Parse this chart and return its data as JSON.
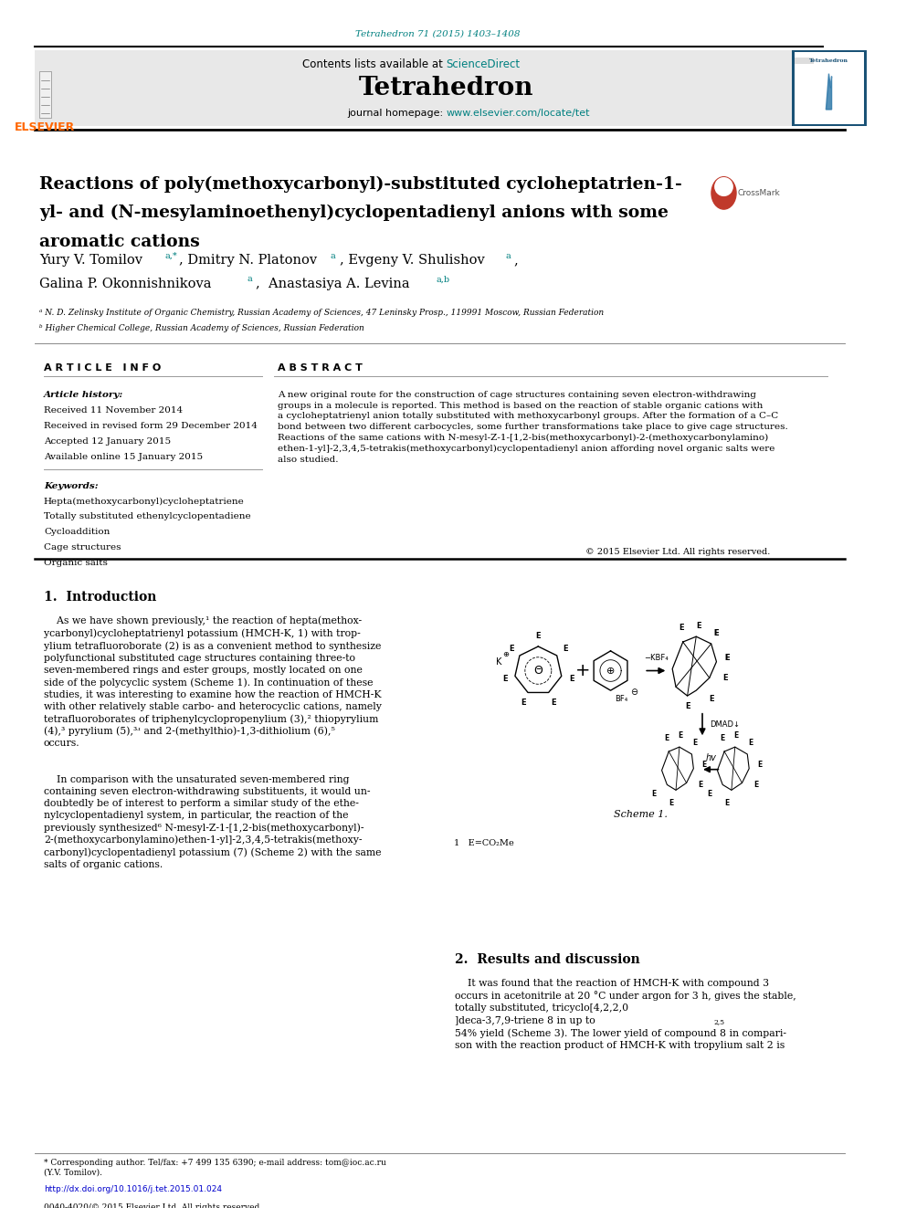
{
  "page_width": 9.92,
  "page_height": 13.23,
  "bg_color": "#ffffff",
  "journal_ref": "Tetrahedron 71 (2015) 1403–1408",
  "journal_ref_color": "#008080",
  "journal_name": "Tetrahedron",
  "contents_text": "Contents lists available at ",
  "sciencedirect_text": "ScienceDirect",
  "sciencedirect_color": "#008080",
  "homepage_text": "journal homepage: ",
  "homepage_url": "www.elsevier.com/locate/tet",
  "homepage_url_color": "#008080",
  "header_bg": "#e8e8e8",
  "title_line1": "Reactions of poly(methoxycarbonyl)-substituted cycloheptatrien-1-",
  "title_line2": "yl- and (N-mesylaminoethenyl)cyclopentadienyl anions with some",
  "title_line3": "aromatic cations",
  "affil_a": "ᵃ N. D. Zelinsky Institute of Organic Chemistry, Russian Academy of Sciences, 47 Leninsky Prosp., 119991 Moscow, Russian Federation",
  "affil_b": "ᵇ Higher Chemical College, Russian Academy of Sciences, Russian Federation",
  "article_info_header": "A R T I C L E   I N F O",
  "abstract_header": "A B S T R A C T",
  "article_history_label": "Article history:",
  "received": "Received 11 November 2014",
  "revised": "Received in revised form 29 December 2014",
  "accepted": "Accepted 12 January 2015",
  "available": "Available online 15 January 2015",
  "keywords_label": "Keywords:",
  "keywords": [
    "Hepta(methoxycarbonyl)cycloheptatriene",
    "Totally substituted ethenylcyclopentadiene",
    "Cycloaddition",
    "Cage structures",
    "Organic salts"
  ],
  "abstract_text": "A new original route for the construction of cage structures containing seven electron-withdrawing\ngroups in a molecule is reported. This method is based on the reaction of stable organic cations with\na cycloheptatrienyl anion totally substituted with methoxycarbonyl groups. After the formation of a C–C\nbond between two different carbocycles, some further transformations take place to give cage structures.\nReactions of the same cations with N-mesyl-Z-1-[1,2-bis(methoxycarbonyl)-2-(methoxycarbonylamino)\nethen-1-yl]-2,3,4,5-tetrakis(methoxycarbonyl)cyclopentadienyl anion affording novel organic salts were\nalso studied.",
  "copyright": "© 2015 Elsevier Ltd. All rights reserved.",
  "intro_header": "1.  Introduction",
  "section2_header": "2.  Results and discussion",
  "footer_text": "* Corresponding author. Tel/fax: +7 499 135 6390; e-mail address: tom@ioc.ac.ru\n(Y.V. Tomilov).",
  "footer_url": "http://dx.doi.org/10.1016/j.tet.2015.01.024",
  "footer_url_color": "#0000cc",
  "footer_issn": "0040-4020/© 2015 Elsevier Ltd. All rights reserved.",
  "elsevier_color": "#ff6600",
  "teal": "#008080",
  "black": "#000000"
}
